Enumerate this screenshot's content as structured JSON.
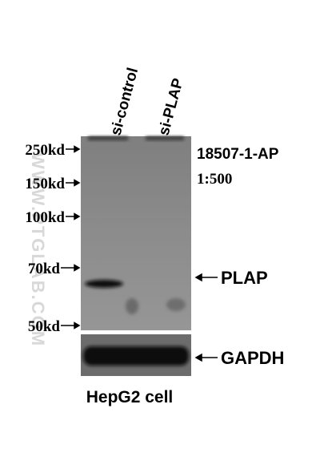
{
  "lanes": [
    "si-control",
    "si-PLAP"
  ],
  "markers": [
    "250kd",
    "150kd",
    "100kd",
    "70kd",
    "50kd"
  ],
  "antibody": "18507-1-AP",
  "dilution": "1:500",
  "bands": [
    "PLAP",
    "GAPDH"
  ],
  "sample": "HepG2 cell",
  "watermark": "WWW.PTGLAB.COM"
}
